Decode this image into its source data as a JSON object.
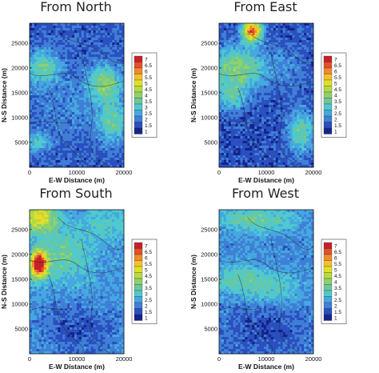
{
  "chart_data": [
    {
      "type": "heatmap",
      "title": "From North",
      "xlabel": "E-W Distance (m)",
      "ylabel": "N-S Distance (m)",
      "xlim": [
        0,
        20000
      ],
      "ylim": [
        0,
        29000
      ],
      "xticks": [
        0,
        10000,
        20000
      ],
      "yticks": [
        5000,
        10000,
        15000,
        20000,
        25000
      ],
      "legend_levels": [
        "7",
        "6.5",
        "6",
        "5.5",
        "5",
        "4.5",
        "4",
        "3.5",
        "3",
        "2.5",
        "2",
        "1.5",
        "1"
      ],
      "legend_placement": "right",
      "hotspots": [
        {
          "x": 3000,
          "y": 20000,
          "sx": 2500,
          "sy": 2500,
          "v": 2.0
        },
        {
          "x": 16000,
          "y": 17000,
          "sx": 2500,
          "sy": 2500,
          "v": 2.2
        },
        {
          "x": 17500,
          "y": 9000,
          "sx": 2000,
          "sy": 3000,
          "v": 1.8
        },
        {
          "x": 1500,
          "y": 5000,
          "sx": 2000,
          "sy": 1500,
          "v": 1.5
        },
        {
          "x": 10000,
          "y": 12000,
          "sx": 6000,
          "sy": 4000,
          "v": 0.5
        }
      ],
      "base": 1.6
    },
    {
      "type": "heatmap",
      "title": "From East",
      "xlabel": "E-W Distance (m)",
      "ylabel": "N-S Distance (m)",
      "xlim": [
        0,
        20000
      ],
      "ylim": [
        0,
        29000
      ],
      "xticks": [
        0,
        10000,
        20000
      ],
      "yticks": [
        5000,
        10000,
        15000,
        20000,
        25000
      ],
      "legend_levels": [
        "7",
        "6.5",
        "6",
        "5.5",
        "5",
        "4.5",
        "4",
        "3.5",
        "3",
        "2.5",
        "2",
        "1.5",
        "1"
      ],
      "legend_placement": "right",
      "hotspots": [
        {
          "x": 7000,
          "y": 27500,
          "sx": 1500,
          "sy": 1500,
          "v": 5.0
        },
        {
          "x": 4000,
          "y": 20000,
          "sx": 4000,
          "sy": 3000,
          "v": 2.5
        },
        {
          "x": 2500,
          "y": 14000,
          "sx": 2500,
          "sy": 2000,
          "v": 1.5
        },
        {
          "x": 17500,
          "y": 7000,
          "sx": 2000,
          "sy": 3000,
          "v": 2.0
        },
        {
          "x": 14000,
          "y": 20000,
          "sx": 3000,
          "sy": 3000,
          "v": 0.6
        }
      ],
      "base": 1.5
    },
    {
      "type": "heatmap",
      "title": "From South",
      "xlabel": "E-W Distance (m)",
      "ylabel": "N-S Distance (m)",
      "xlim": [
        0,
        20000
      ],
      "ylim": [
        0,
        29000
      ],
      "xticks": [
        0,
        10000,
        20000
      ],
      "yticks": [
        5000,
        10000,
        15000,
        20000,
        25000
      ],
      "legend_levels": [
        "7",
        "6.5",
        "6",
        "5.5",
        "5",
        "4.5",
        "4",
        "3.5",
        "3",
        "2.5",
        "2",
        "1.5",
        "1"
      ],
      "legend_placement": "right",
      "hotspots": [
        {
          "x": 2000,
          "y": 18000,
          "sx": 1200,
          "sy": 1800,
          "v": 5.5
        },
        {
          "x": 2000,
          "y": 27500,
          "sx": 2500,
          "sy": 2000,
          "v": 2.8
        },
        {
          "x": 7000,
          "y": 20000,
          "sx": 4000,
          "sy": 4000,
          "v": 1.2
        },
        {
          "x": 16000,
          "y": 26000,
          "sx": 3000,
          "sy": 2500,
          "v": 0.8
        },
        {
          "x": 10000,
          "y": 5000,
          "sx": 6000,
          "sy": 4000,
          "v": -0.8
        }
      ],
      "base": 2.3
    },
    {
      "type": "heatmap",
      "title": "From West",
      "xlabel": "E-W Distance (m)",
      "ylabel": "N-S Distance (m)",
      "xlim": [
        0,
        20000
      ],
      "ylim": [
        0,
        29000
      ],
      "xticks": [
        0,
        10000,
        20000
      ],
      "yticks": [
        5000,
        10000,
        15000,
        20000,
        25000
      ],
      "legend_levels": [
        "7",
        "6.5",
        "6",
        "5.5",
        "5",
        "4.5",
        "4",
        "3.5",
        "3",
        "2.5",
        "2",
        "1.5",
        "1"
      ],
      "legend_placement": "right",
      "hotspots": [
        {
          "x": 8000,
          "y": 27000,
          "sx": 6000,
          "sy": 2000,
          "v": 1.4
        },
        {
          "x": 4000,
          "y": 15000,
          "sx": 4000,
          "sy": 2500,
          "v": 1.2
        },
        {
          "x": 12000,
          "y": 13000,
          "sx": 4000,
          "sy": 2500,
          "v": 1.0
        },
        {
          "x": 10000,
          "y": 5000,
          "sx": 6000,
          "sy": 4000,
          "v": -0.7
        }
      ],
      "base": 2.1
    }
  ],
  "colors": {
    "levels": [
      "#14248a",
      "#2a4fbf",
      "#3f7fd6",
      "#45a8e0",
      "#4ec9cf",
      "#6cc79a",
      "#8fd16a",
      "#b7db3e",
      "#e0e02a",
      "#f3c22a",
      "#f08a2a",
      "#e3502a",
      "#c7202a"
    ]
  }
}
